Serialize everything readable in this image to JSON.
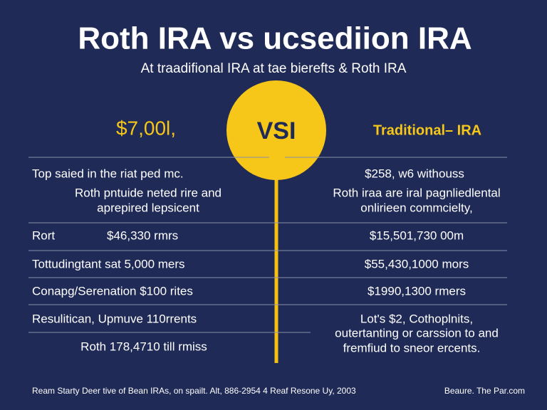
{
  "header": {
    "title": "Roth IRA vs ucsediion IRA",
    "subtitle": "At traadifional IRA at tae bierefts & Roth IRA"
  },
  "vs": "VSI",
  "left": {
    "heading": "$7,00l,",
    "rows": [
      [
        "Top saied in the riat ped mc.",
        "Roth pntuide neted rire and",
        "aprepired lepsicent"
      ],
      [
        "Rort",
        "$46,330 rmrs"
      ],
      [
        "Tottudingtant sat 5,000 mers"
      ],
      [
        "Conapg/Serenation $100 rites"
      ],
      [
        "Resulitican, Upmuve 110rrents"
      ],
      [
        "Roth 178,4710 till rmiss"
      ]
    ]
  },
  "right": {
    "heading": "Traditional– IRA",
    "rows": [
      [
        "$258, w6 withouss",
        "Roth iraa are iral pagnliedlental",
        "onlirieen commcielty,"
      ],
      [
        "$15,501,730 00m"
      ],
      [
        "$55,430,1000 mors"
      ],
      [
        "$1990,1300 rmers"
      ],
      [
        "Lot's $2, Cothoplnits,",
        "outertanting or carssion to and",
        "fremfiud to sneor ercents."
      ]
    ]
  },
  "footer": {
    "left": "Ream Starty Deer tive of Bean IRAs, on spailt. Alt, 886-2954 4 Reaf Resone Uy, 2003",
    "right": "Beaure. The Par.com"
  }
}
